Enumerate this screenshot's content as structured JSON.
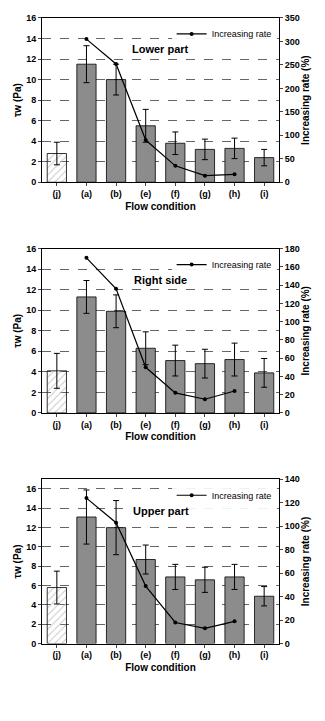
{
  "chart_data": [
    {
      "type": "bar",
      "title": "Lower part",
      "x_label": "Flow condition",
      "y_label": "τw (Pa)",
      "y2_label": "Increasing rate (%)",
      "categories": [
        "(j)",
        "(a)",
        "(b)",
        "(e)",
        "(f)",
        "(g)",
        "(h)",
        "(i)"
      ],
      "ylim": [
        0,
        16
      ],
      "yticks": [
        0,
        2,
        4,
        6,
        8,
        10,
        12,
        14,
        16
      ],
      "y2lim": [
        0,
        350
      ],
      "y2ticks": [
        0,
        50,
        100,
        150,
        200,
        250,
        300,
        350
      ],
      "grid": true,
      "legend": "upper right",
      "series": [
        {
          "type": "bar",
          "values": [
            2.8,
            11.5,
            10.0,
            5.5,
            3.8,
            3.2,
            3.3,
            2.4
          ],
          "error": [
            1.1,
            1.8,
            1.5,
            1.6,
            1.1,
            1.0,
            1.0,
            0.8
          ],
          "colors": [
            "#c8c8c8",
            "#8c8c8c",
            "#8c8c8c",
            "#8c8c8c",
            "#8c8c8c",
            "#8c8c8c",
            "#8c8c8c",
            "#8c8c8c"
          ]
        },
        {
          "type": "line",
          "name": "Increasing rate",
          "axis": "y2",
          "color": "#000000",
          "marker": "circle",
          "values": [
            null,
            305,
            252,
            90,
            35,
            14,
            17,
            null
          ]
        }
      ]
    },
    {
      "type": "bar",
      "title": "Right side",
      "x_label": "Flow condition",
      "y_label": "τw (Pa)",
      "y2_label": "Increasing rate (%)",
      "categories": [
        "(j)",
        "(a)",
        "(b)",
        "(e)",
        "(f)",
        "(g)",
        "(h)",
        "(i)"
      ],
      "ylim": [
        0,
        16
      ],
      "yticks": [
        0,
        2,
        4,
        6,
        8,
        10,
        12,
        14,
        16
      ],
      "y2lim": [
        0,
        180
      ],
      "y2ticks": [
        0,
        20,
        40,
        60,
        80,
        100,
        120,
        140,
        160,
        180
      ],
      "grid": true,
      "legend": "upper right",
      "series": [
        {
          "type": "bar",
          "values": [
            4.1,
            11.3,
            9.9,
            6.3,
            5.1,
            4.8,
            5.2,
            3.9
          ],
          "error": [
            1.7,
            1.6,
            1.6,
            1.6,
            1.5,
            1.4,
            1.6,
            1.4
          ],
          "colors": [
            "#c8c8c8",
            "#8c8c8c",
            "#8c8c8c",
            "#8c8c8c",
            "#8c8c8c",
            "#8c8c8c",
            "#8c8c8c",
            "#8c8c8c"
          ]
        },
        {
          "type": "line",
          "name": "Increasing rate",
          "axis": "y2",
          "color": "#000000",
          "marker": "circle",
          "values": [
            null,
            170,
            136,
            50,
            22,
            15,
            24,
            null
          ]
        }
      ]
    },
    {
      "type": "bar",
      "title": "Upper part",
      "x_label": "Flow condition",
      "y_label": "τw (Pa)",
      "y2_label": "Increasing rate (%)",
      "categories": [
        "(j)",
        "(a)",
        "(b)",
        "(e)",
        "(f)",
        "(g)",
        "(h)",
        "(i)"
      ],
      "ylim": [
        0,
        17
      ],
      "yticks": [
        0,
        2,
        4,
        6,
        8,
        10,
        12,
        14,
        16
      ],
      "y2lim": [
        0,
        140
      ],
      "y2ticks": [
        0,
        20,
        40,
        60,
        80,
        100,
        120,
        140
      ],
      "grid": true,
      "legend": "upper right",
      "series": [
        {
          "type": "bar",
          "values": [
            5.8,
            13.1,
            12.0,
            8.7,
            6.9,
            6.6,
            6.9,
            4.9
          ],
          "error": [
            1.7,
            2.8,
            2.8,
            1.5,
            1.3,
            1.3,
            1.3,
            1.0
          ],
          "colors": [
            "#c8c8c8",
            "#8c8c8c",
            "#8c8c8c",
            "#8c8c8c",
            "#8c8c8c",
            "#8c8c8c",
            "#8c8c8c",
            "#8c8c8c"
          ]
        },
        {
          "type": "line",
          "name": "Increasing rate",
          "axis": "y2",
          "color": "#000000",
          "marker": "circle",
          "values": [
            null,
            124,
            103,
            49,
            18,
            13,
            19,
            null
          ]
        }
      ]
    }
  ]
}
